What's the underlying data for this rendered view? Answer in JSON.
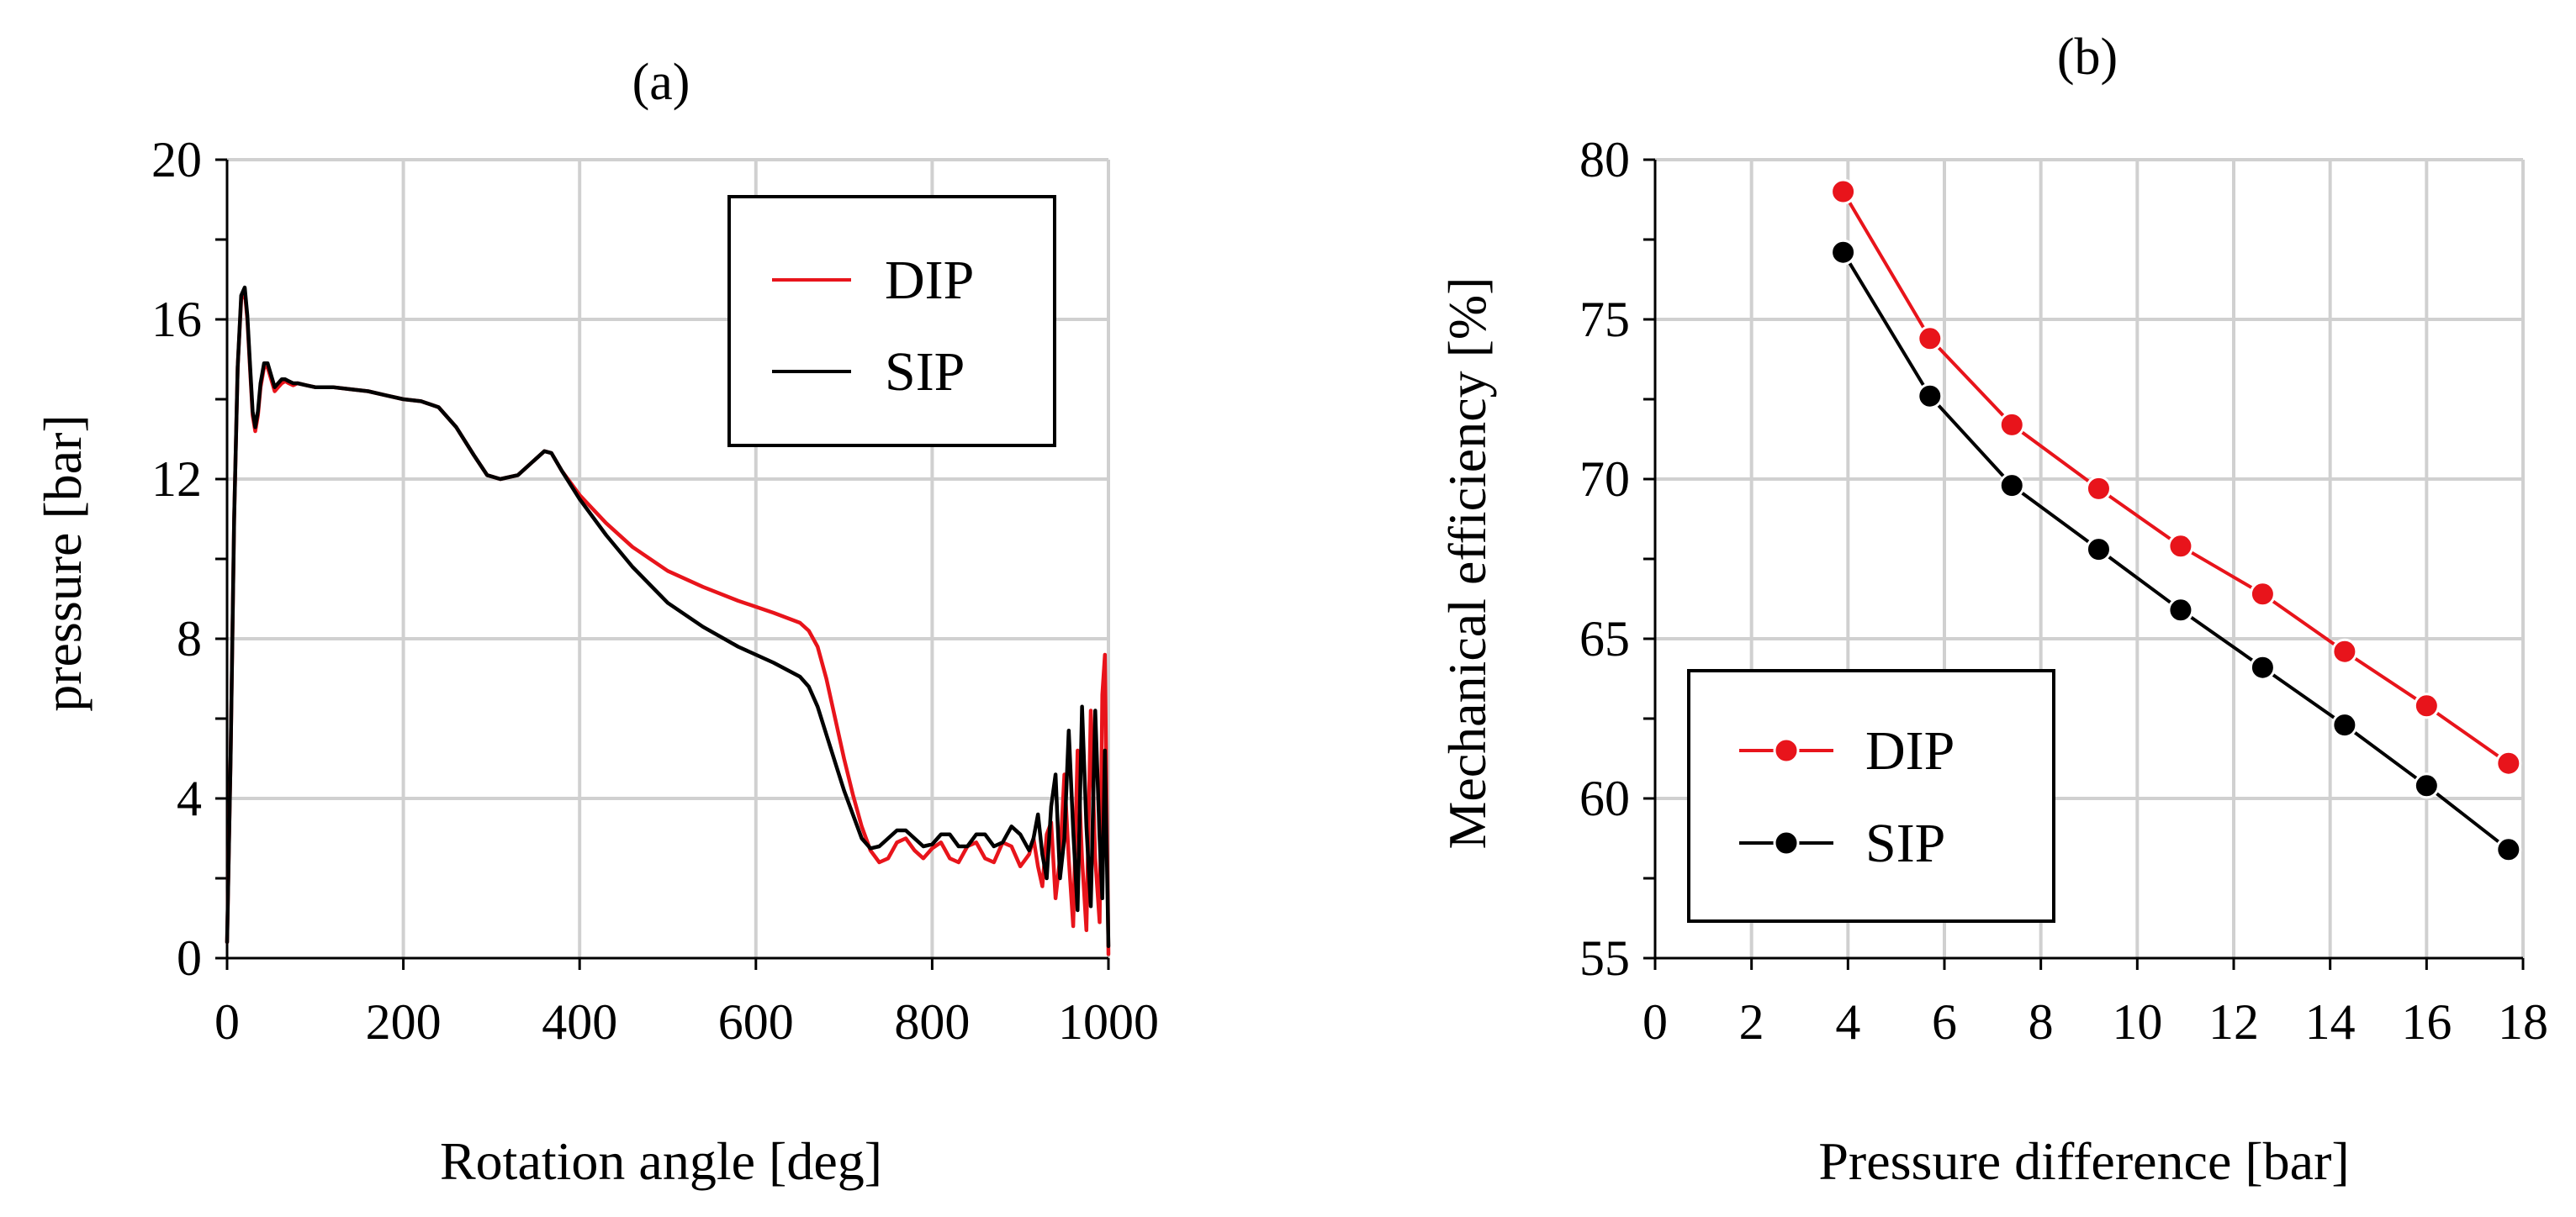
{
  "chart_data": [
    {
      "type": "line",
      "panel": "(a)",
      "xlabel": "Rotation angle [deg]",
      "ylabel": "pressure [bar]",
      "xlim": [
        0,
        1000
      ],
      "ylim": [
        0,
        20
      ],
      "xticks": [
        0,
        200,
        400,
        600,
        800,
        1000
      ],
      "yticks": [
        0,
        4,
        8,
        12,
        16,
        20
      ],
      "grid": true,
      "legend_position": "top-right",
      "series": [
        {
          "name": "DIP",
          "color": "#e8141b",
          "x": [
            0,
            4,
            8,
            12,
            16,
            20,
            23,
            26,
            29,
            32,
            35,
            38,
            42,
            46,
            50,
            54,
            58,
            62,
            66,
            70,
            75,
            80,
            90,
            100,
            120,
            140,
            160,
            180,
            200,
            220,
            240,
            260,
            280,
            295,
            310,
            330,
            345,
            360,
            368,
            380,
            400,
            430,
            460,
            500,
            540,
            580,
            620,
            650,
            660,
            670,
            680,
            690,
            700,
            710,
            720,
            730,
            740,
            750,
            760,
            770,
            780,
            790,
            800,
            810,
            820,
            830,
            840,
            850,
            860,
            870,
            880,
            890,
            900,
            910,
            915,
            920,
            925,
            930,
            935,
            940,
            945,
            950,
            955,
            960,
            965,
            970,
            975,
            980,
            985,
            990,
            993,
            996,
            1000
          ],
          "y": [
            0.4,
            5,
            11,
            14.8,
            16.5,
            16.7,
            16,
            14.8,
            13.6,
            13.2,
            13.6,
            14.3,
            14.8,
            14.8,
            14.5,
            14.2,
            14.3,
            14.4,
            14.45,
            14.4,
            14.35,
            14.4,
            14.35,
            14.3,
            14.3,
            14.25,
            14.2,
            14.1,
            14.0,
            13.95,
            13.8,
            13.3,
            12.6,
            12.1,
            12.0,
            12.1,
            12.4,
            12.7,
            12.65,
            12.2,
            11.6,
            10.9,
            10.3,
            9.7,
            9.3,
            8.95,
            8.65,
            8.4,
            8.2,
            7.8,
            7.0,
            6.0,
            5.0,
            4.1,
            3.3,
            2.7,
            2.4,
            2.5,
            2.9,
            3.0,
            2.7,
            2.5,
            2.75,
            2.9,
            2.5,
            2.4,
            2.8,
            2.9,
            2.5,
            2.4,
            2.9,
            2.8,
            2.3,
            2.6,
            3.0,
            2.3,
            1.8,
            3.1,
            3.4,
            1.5,
            2.5,
            4.6,
            2.5,
            0.8,
            5.2,
            2.5,
            0.7,
            6.2,
            2.5,
            0.9,
            6.6,
            7.6,
            0.1
          ]
        },
        {
          "name": "SIP",
          "color": "#000000",
          "x": [
            0,
            4,
            8,
            12,
            16,
            20,
            23,
            26,
            29,
            32,
            35,
            38,
            42,
            46,
            50,
            54,
            58,
            62,
            66,
            70,
            75,
            80,
            90,
            100,
            120,
            140,
            160,
            180,
            200,
            220,
            240,
            260,
            280,
            295,
            310,
            330,
            345,
            360,
            368,
            380,
            400,
            430,
            460,
            500,
            540,
            580,
            620,
            650,
            660,
            670,
            680,
            690,
            700,
            710,
            720,
            730,
            740,
            750,
            760,
            770,
            780,
            790,
            800,
            810,
            820,
            830,
            840,
            850,
            860,
            870,
            880,
            890,
            900,
            910,
            915,
            920,
            925,
            930,
            935,
            940,
            945,
            950,
            955,
            960,
            965,
            970,
            975,
            980,
            985,
            990,
            993,
            996,
            1000
          ],
          "y": [
            0.4,
            5,
            11,
            14.8,
            16.6,
            16.8,
            16.1,
            14.9,
            13.7,
            13.3,
            13.7,
            14.4,
            14.9,
            14.9,
            14.6,
            14.3,
            14.4,
            14.5,
            14.5,
            14.45,
            14.4,
            14.4,
            14.35,
            14.3,
            14.3,
            14.25,
            14.2,
            14.1,
            14.0,
            13.95,
            13.8,
            13.3,
            12.6,
            12.1,
            12.0,
            12.1,
            12.4,
            12.7,
            12.65,
            12.2,
            11.5,
            10.6,
            9.8,
            8.9,
            8.3,
            7.8,
            7.4,
            7.05,
            6.8,
            6.3,
            5.6,
            4.9,
            4.2,
            3.6,
            3.0,
            2.75,
            2.8,
            3.0,
            3.2,
            3.2,
            3.0,
            2.8,
            2.85,
            3.1,
            3.1,
            2.8,
            2.8,
            3.1,
            3.1,
            2.8,
            2.9,
            3.3,
            3.1,
            2.7,
            3.0,
            3.6,
            2.6,
            2.0,
            3.8,
            4.6,
            2.0,
            3.0,
            5.7,
            3.2,
            1.2,
            6.3,
            3.3,
            1.3,
            6.2,
            3.0,
            1.5,
            5.2,
            0.3
          ]
        }
      ]
    },
    {
      "type": "line",
      "panel": "(b)",
      "xlabel": "Pressure difference [bar]",
      "ylabel": "Mechanical efficiency [%]",
      "xlim": [
        0,
        18
      ],
      "ylim": [
        55,
        80
      ],
      "xticks": [
        0,
        2,
        4,
        6,
        8,
        10,
        12,
        14,
        16,
        18
      ],
      "yticks": [
        55,
        60,
        65,
        70,
        75,
        80
      ],
      "grid": true,
      "legend_position": "bottom-left",
      "markers": true,
      "series": [
        {
          "name": "DIP",
          "color": "#e8141b",
          "x": [
            3.9,
            5.7,
            7.4,
            9.2,
            10.9,
            12.6,
            14.3,
            16.0,
            17.7
          ],
          "y": [
            79.0,
            74.4,
            71.7,
            69.7,
            67.9,
            66.4,
            64.6,
            62.9,
            61.1
          ]
        },
        {
          "name": "SIP",
          "color": "#000000",
          "x": [
            3.9,
            5.7,
            7.4,
            9.2,
            10.9,
            12.6,
            14.3,
            16.0,
            17.7
          ],
          "y": [
            77.1,
            72.6,
            69.8,
            67.8,
            65.9,
            64.1,
            62.3,
            60.4,
            58.4
          ]
        }
      ]
    }
  ]
}
